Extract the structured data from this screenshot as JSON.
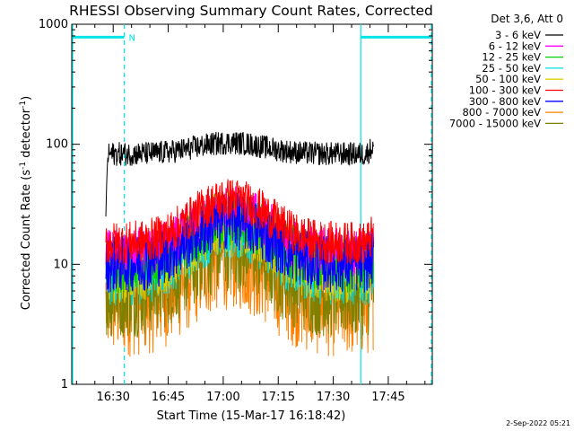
{
  "chart_data": {
    "type": "line",
    "title": "RHESSI Observing Summary Count Rates, Corrected",
    "xlabel": "Start Time (15-Mar-17 16:18:42)",
    "ylabel": "Corrected Count Rate (s⁻¹ detector⁻¹)",
    "ylabel_main": "Corrected Count Rate (s",
    "ylabel_sup1": "-1",
    "ylabel_mid": " detector",
    "ylabel_sup2": "-1",
    "ylabel_end": ")",
    "yscale": "log",
    "ylim": [
      1,
      1000
    ],
    "y_ticks": [
      {
        "v": 1,
        "label": "1"
      },
      {
        "v": 10,
        "label": "10"
      },
      {
        "v": 100,
        "label": "100"
      },
      {
        "v": 1000,
        "label": "1000"
      }
    ],
    "xlim": [
      "16:18:42",
      "17:57:00"
    ],
    "x_ticks": [
      "16:30",
      "16:45",
      "17:00",
      "17:15",
      "17:30",
      "17:45"
    ],
    "legend_header": "Det 3,6, Att 0",
    "legend_position": "right, outside plot",
    "data_window": [
      "16:28:00",
      "17:41:00"
    ],
    "night_marker": {
      "label": "N",
      "solid_lines": [
        "16:18:42",
        "17:37:30"
      ],
      "dashed_lines": [
        "16:33:00",
        "17:58:00"
      ],
      "bars": [
        [
          "16:18:42",
          "16:33:00"
        ],
        [
          "17:37:30",
          "17:58:00"
        ]
      ],
      "bar_level": 780,
      "color": "#00e5e5"
    },
    "series": [
      {
        "name": "3 - 6 keV",
        "color": "#000000",
        "base": 83,
        "peak": 103,
        "noise": 0.025
      },
      {
        "name": "6 - 12 keV",
        "color": "#ff00ff",
        "base": 12.5,
        "peak": 29,
        "noise": 0.05
      },
      {
        "name": "12 - 25 keV",
        "color": "#00d000",
        "base": 10,
        "peak": 24,
        "noise": 0.06
      },
      {
        "name": "25 - 50 keV",
        "color": "#00e0e0",
        "base": 8.5,
        "peak": 21,
        "noise": 0.07
      },
      {
        "name": "50 - 100 keV",
        "color": "#e0d000",
        "base": 9,
        "peak": 22,
        "noise": 0.07
      },
      {
        "name": "100 - 300 keV",
        "color": "#ff0000",
        "base": 15,
        "peak": 35,
        "noise": 0.045
      },
      {
        "name": "300 - 800 keV",
        "color": "#0000ff",
        "base": 10,
        "peak": 23,
        "noise": 0.06
      },
      {
        "name": "800 - 7000 keV",
        "color": "#ff8000",
        "base": 5,
        "peak": 12.5,
        "noise": 0.12
      },
      {
        "name": "7000 - 15000 keV",
        "color": "#808000",
        "base": 6,
        "peak": 15,
        "noise": 0.1
      }
    ],
    "flare_peak_time": "17:02:00",
    "flare_width_minutes": 9
  },
  "footer_date": "2-Sep-2022 05:21"
}
